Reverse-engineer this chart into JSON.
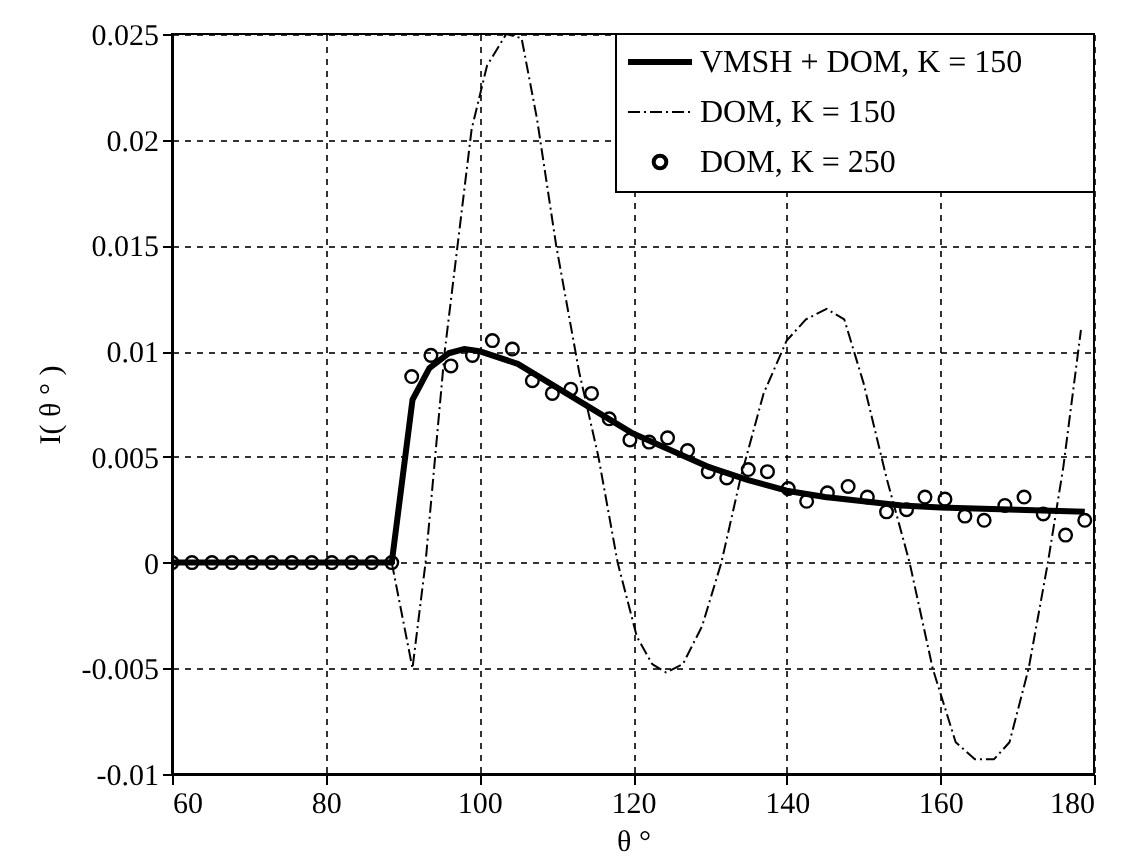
{
  "chart_data": {
    "type": "line",
    "xlabel": "θ °",
    "ylabel": "I( θ ° )",
    "xlim": [
      60,
      180
    ],
    "xticks": [
      60,
      80,
      100,
      120,
      140,
      160,
      180
    ],
    "ylim": [
      -0.01,
      0.025
    ],
    "yticks": [
      -0.01,
      -0.005,
      0,
      0.005,
      0.01,
      0.015,
      0.02,
      0.025
    ],
    "grid": true,
    "legend": "top right",
    "series": [
      {
        "name": "VMSH + DOM, K = 150",
        "type": "line",
        "color": "#000000",
        "line_style": "solid",
        "marker": "none",
        "x": [
          60,
          88.6,
          91.3,
          93.5,
          96,
          98,
          100,
          105,
          110,
          115,
          120,
          125,
          130,
          135,
          140,
          145,
          150,
          155,
          160,
          170,
          178.8
        ],
        "values": [
          0,
          0,
          0.0077,
          0.0092,
          0.0099,
          0.0101,
          0.01,
          0.0094,
          0.0083,
          0.0072,
          0.0061,
          0.0053,
          0.0045,
          0.0039,
          0.0034,
          0.0031,
          0.0029,
          0.0027,
          0.0026,
          0.0025,
          0.0024
        ]
      },
      {
        "name": "DOM, K = 150",
        "type": "line",
        "color": "#000000",
        "line_style": "dashdot",
        "marker": "none",
        "x": [
          60,
          88.6,
          91.3,
          93,
          95.5,
          97.5,
          99,
          101,
          103.5,
          105.5,
          107.5,
          110,
          113,
          115.5,
          118,
          120.5,
          122.5,
          124.3,
          126.5,
          129,
          131.5,
          134,
          137,
          140,
          142.5,
          145.2,
          147.5,
          150,
          153,
          156,
          159,
          162,
          164.5,
          167,
          169,
          171.5,
          174,
          176,
          178.3
        ],
        "values": [
          0,
          0,
          -0.005,
          0,
          0.01,
          0.016,
          0.0205,
          0.0235,
          0.025,
          0.0248,
          0.021,
          0.015,
          0.009,
          0.005,
          0,
          -0.0035,
          -0.0048,
          -0.0052,
          -0.0048,
          -0.003,
          0,
          0.004,
          0.008,
          0.0105,
          0.0115,
          0.012,
          0.0115,
          0.0085,
          0.004,
          0,
          -0.005,
          -0.0085,
          -0.0093,
          -0.0093,
          -0.0085,
          -0.005,
          0,
          0.0045,
          0.011
        ]
      },
      {
        "name": "DOM, K = 250",
        "type": "scatter",
        "color": "#000000",
        "marker": "circle",
        "x": [
          60,
          62.6,
          65.2,
          67.8,
          70.4,
          73,
          75.6,
          78.2,
          80.8,
          83.4,
          86,
          88.6,
          91.2,
          93.7,
          96.3,
          99.1,
          101.7,
          104.3,
          106.9,
          109.5,
          111.9,
          114.6,
          116.9,
          119.6,
          122.1,
          124.5,
          127.1,
          129.8,
          132.2,
          135,
          137.5,
          140.2,
          142.6,
          145.3,
          148,
          150.5,
          153,
          155.6,
          158,
          160.6,
          163.2,
          165.7,
          168.4,
          170.9,
          173.4,
          176.3,
          178.8
        ],
        "values": [
          0,
          0,
          0,
          0,
          0,
          0,
          0,
          0,
          0,
          0,
          0,
          0,
          0.0088,
          0.0098,
          0.0093,
          0.0098,
          0.0105,
          0.0101,
          0.0086,
          0.008,
          0.0082,
          0.008,
          0.0068,
          0.0058,
          0.0057,
          0.0059,
          0.0053,
          0.0043,
          0.004,
          0.0044,
          0.0043,
          0.0035,
          0.0029,
          0.0033,
          0.0036,
          0.0031,
          0.0024,
          0.0025,
          0.0031,
          0.003,
          0.0022,
          0.002,
          0.0027,
          0.0031,
          0.0023,
          0.0013,
          0.002
        ]
      }
    ]
  }
}
